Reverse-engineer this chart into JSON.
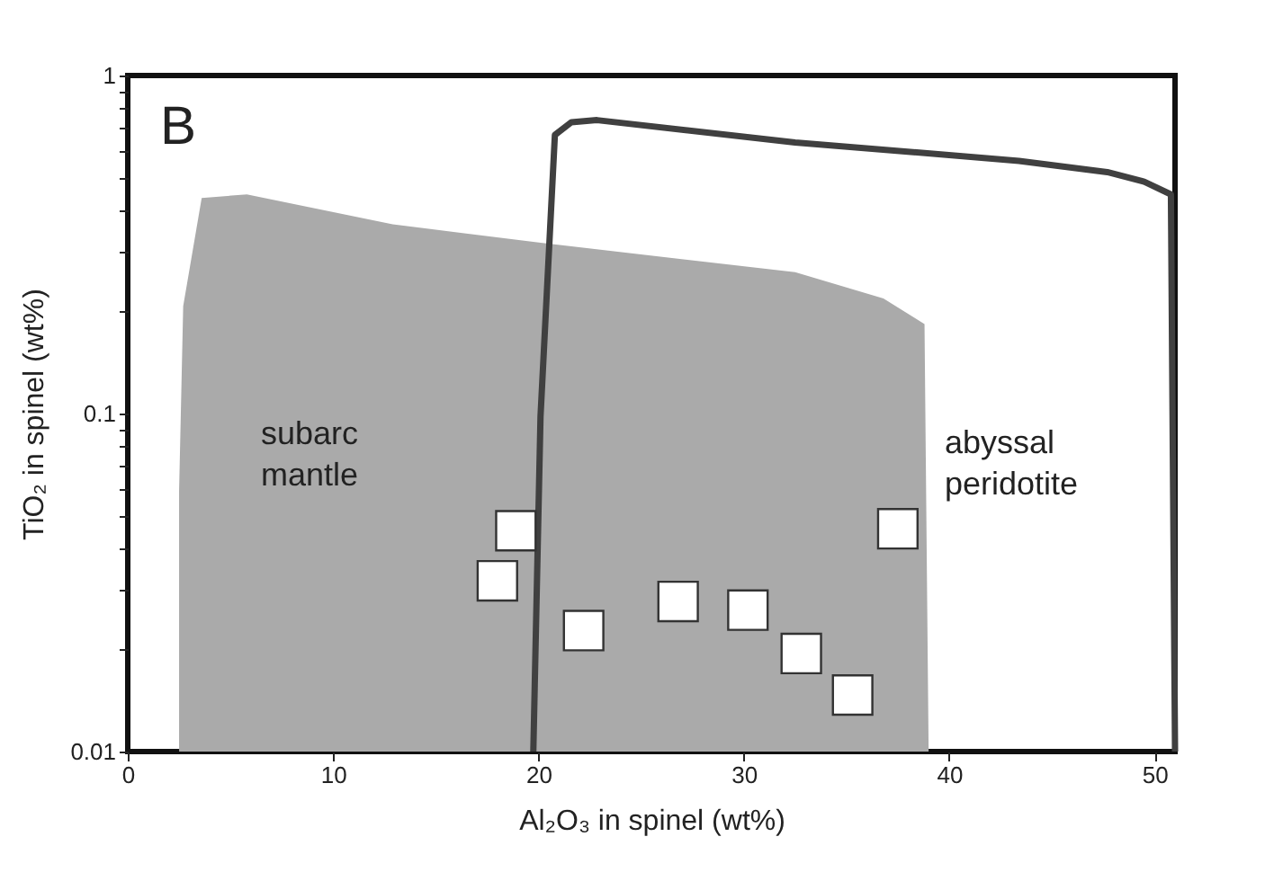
{
  "chart_data": {
    "type": "scatter",
    "xlabel": "Al₂O₃ in spinel (wt%)",
    "ylabel": "TiO₂ in spinel (wt%)",
    "xlim": [
      0,
      51
    ],
    "xticks": [
      0,
      10,
      20,
      30,
      40,
      50
    ],
    "ylim": [
      0.01,
      1
    ],
    "yticks": [
      0.01,
      {
        "value": 0.02,
        "label": null
      },
      {
        "value": 0.03,
        "label": null
      },
      {
        "value": 0.04,
        "label": null
      },
      {
        "value": 0.05,
        "label": null
      },
      {
        "value": 0.06,
        "label": null
      },
      {
        "value": 0.07,
        "label": null
      },
      {
        "value": 0.08,
        "label": null
      },
      {
        "value": 0.09,
        "label": null
      },
      0.1,
      {
        "value": 0.2,
        "label": null
      },
      {
        "value": 0.3,
        "label": null
      },
      {
        "value": 0.4,
        "label": null
      },
      {
        "value": 0.5,
        "label": null
      },
      {
        "value": 0.6,
        "label": null
      },
      {
        "value": 0.7,
        "label": null
      },
      {
        "value": 0.8,
        "label": null
      },
      {
        "value": 0.9,
        "label": null
      },
      1
    ],
    "log": "y",
    "grid": false,
    "series": [
      {
        "type": "area",
        "color": "#aaaaaa",
        "x": [
          2.5,
          2.7,
          3.6,
          5.8,
          12.9,
          20.1,
          32.5,
          36.8,
          38.8,
          39.0
        ],
        "values": [
          0.059,
          0.208,
          0.434,
          0.445,
          0.363,
          0.32,
          0.262,
          0.219,
          0.184,
          0.01
        ]
      },
      {
        "type": "line",
        "color": "#404040",
        "line_style": "solid",
        "marker": "none",
        "x": [
          19.75,
          20.1,
          20.8,
          21.6,
          22.85,
          32.5,
          43.4,
          47.7,
          49.5,
          50.8,
          51.0
        ],
        "values": [
          0.01,
          0.098,
          0.667,
          0.727,
          0.738,
          0.634,
          0.559,
          0.518,
          0.485,
          0.445,
          0.01
        ]
      },
      {
        "color": "#ffffff",
        "marker": "square",
        "x": [
          18.9,
          18.0,
          22.2,
          26.8,
          30.2,
          32.8,
          35.3,
          37.5
        ],
        "values": [
          0.045,
          0.032,
          0.0228,
          0.0278,
          0.0262,
          0.0195,
          0.0147,
          0.0456
        ]
      }
    ],
    "annotations": [
      "B",
      "subarc\nmantle",
      "abyssal\nperidotite"
    ]
  }
}
